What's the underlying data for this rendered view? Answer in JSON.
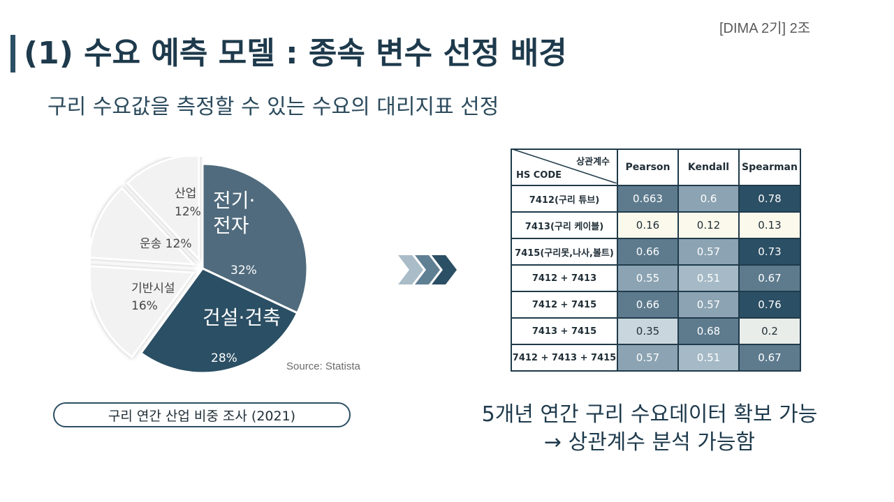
{
  "header_tag": "[DIMA 2기] 2조",
  "title": "(1) 수요 예측 모델 : 종속 변수 선정 배경",
  "subtitle": "구리 수요값을 측정할 수 있는 수요의 대리지표 선정",
  "source": "Source: Statista",
  "caption": "구리 연간 산업 비중 조사 (2021)",
  "conclusion": {
    "line1": "5개년 연간 구리 수요데이터 확보 가능",
    "line2": "→ 상관계수 분석 가능함"
  },
  "colors": {
    "accent": "#2b4f64",
    "pie_dark": "#2b4f64",
    "pie_mid": "#506b7d",
    "pie_light": "#f2f2f2"
  },
  "chart_data": [
    {
      "type": "pie",
      "slices": [
        {
          "label": "전기·전자",
          "value": 32,
          "display": "32%",
          "color": "#506b7d"
        },
        {
          "label": "건설·건축",
          "value": 28,
          "display": "28%",
          "color": "#2b4f64"
        },
        {
          "label": "기반시설",
          "value": 16,
          "display": "16%",
          "color": "#f2f2f2"
        },
        {
          "label": "운송",
          "value": 12,
          "display": "12%",
          "color": "#f2f2f2"
        },
        {
          "label": "산업",
          "value": 12,
          "display": "12%",
          "color": "#f2f2f2"
        }
      ]
    },
    {
      "type": "table",
      "corner": {
        "top": "상관계수",
        "bottom": "HS CODE"
      },
      "columns": [
        "Pearson",
        "Kendall",
        "Spearman"
      ],
      "rows": [
        {
          "label": "7412(구리 튜브)",
          "values": [
            "0.663",
            "0.6",
            "0.78"
          ]
        },
        {
          "label": "7413(구리 케이블)",
          "values": [
            "0.16",
            "0.12",
            "0.13"
          ]
        },
        {
          "label": "7415(구리못,나사,볼트)",
          "values": [
            "0.66",
            "0.57",
            "0.73"
          ]
        },
        {
          "label": "7412 + 7413",
          "values": [
            "0.55",
            "0.51",
            "0.67"
          ]
        },
        {
          "label": "7412 + 7415",
          "values": [
            "0.66",
            "0.57",
            "0.76"
          ]
        },
        {
          "label": "7413 + 7415",
          "values": [
            "0.35",
            "0.68",
            "0.2"
          ]
        },
        {
          "label": "7412 + 7413 + 7415",
          "values": [
            "0.57",
            "0.51",
            "0.67"
          ]
        }
      ]
    }
  ]
}
